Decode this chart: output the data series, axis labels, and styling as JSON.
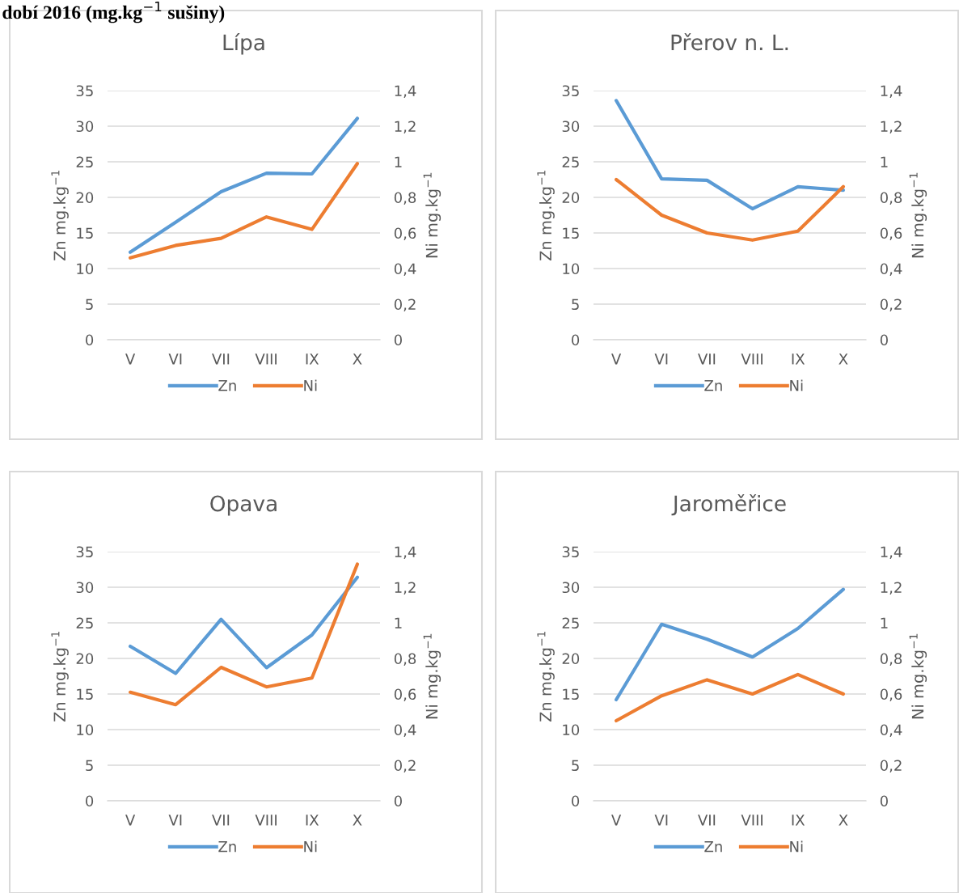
{
  "chart_data": [
    {
      "type": "line",
      "title": "Lípa",
      "categories": [
        "V",
        "VI",
        "VII",
        "VIII",
        "IX",
        "X"
      ],
      "ylabel": "Zn mg.kg$^{−1}$",
      "y2label": "Ni mg.kg$^{−1}$",
      "annotations": [
        "dobí 2016 (mg.kg$^{−1}$ sušiny)"
      ],
      "ylim": [
        0,
        35
      ],
      "yticks": [
        0,
        5,
        10,
        15,
        20,
        25,
        30,
        35
      ],
      "y2lim": [
        0,
        1.4
      ],
      "y2ticks": [
        0,
        {
          "value": 0.2,
          "label": "0,2"
        },
        {
          "value": 0.4,
          "label": "0,4"
        },
        {
          "value": 0.6,
          "label": "0,6"
        },
        {
          "value": 0.8,
          "label": "0,8"
        },
        1,
        {
          "value": 1.2,
          "label": "1,2"
        },
        {
          "value": 1.4,
          "label": "1,4"
        }
      ],
      "grid": "y",
      "legend": "bottom",
      "series": [
        {
          "name": "Zn",
          "color": "#5b9bd5",
          "values": [
            12.3,
            16.5,
            20.8,
            23.4,
            23.3,
            31.1
          ]
        },
        {
          "name": "Ni",
          "color": "#ed7d31",
          "axis": "y2",
          "values": [
            0.46,
            0.53,
            0.57,
            0.69,
            0.62,
            0.99
          ]
        }
      ]
    },
    {
      "type": "line",
      "title": "Přerov n. L.",
      "categories": [
        "V",
        "VI",
        "VII",
        "VIII",
        "IX",
        "X"
      ],
      "ylabel": "Zn mg.kg$^{−1}$",
      "y2label": "Ni mg.kg$^{−1}$",
      "ylim": [
        0,
        35
      ],
      "yticks": [
        0,
        5,
        10,
        15,
        20,
        25,
        30,
        35
      ],
      "y2lim": [
        0,
        1.4
      ],
      "y2ticks": [
        0,
        {
          "value": 0.2,
          "label": "0,2"
        },
        {
          "value": 0.4,
          "label": "0,4"
        },
        {
          "value": 0.6,
          "label": "0,6"
        },
        {
          "value": 0.8,
          "label": "0,8"
        },
        1,
        {
          "value": 1.2,
          "label": "1,2"
        },
        {
          "value": 1.4,
          "label": "1,4"
        }
      ],
      "grid": "y",
      "legend": "bottom",
      "series": [
        {
          "name": "Zn",
          "color": "#5b9bd5",
          "values": [
            33.6,
            22.6,
            22.4,
            18.4,
            21.5,
            21.0
          ]
        },
        {
          "name": "Ni",
          "color": "#ed7d31",
          "axis": "y2",
          "values": [
            0.9,
            0.7,
            0.6,
            0.56,
            0.61,
            0.86
          ]
        }
      ]
    },
    {
      "type": "line",
      "title": "Opava",
      "categories": [
        "V",
        "VI",
        "VII",
        "VIII",
        "IX",
        "X"
      ],
      "ylabel": "Zn mg.kg$^{−1}$",
      "y2label": "Ni mg.kg$^{−1}$",
      "ylim": [
        0,
        35
      ],
      "yticks": [
        0,
        5,
        10,
        15,
        20,
        25,
        30,
        35
      ],
      "y2lim": [
        0,
        1.4
      ],
      "y2ticks": [
        0,
        {
          "value": 0.2,
          "label": "0,2"
        },
        {
          "value": 0.4,
          "label": "0,4"
        },
        {
          "value": 0.6,
          "label": "0,6"
        },
        {
          "value": 0.8,
          "label": "0,8"
        },
        1,
        {
          "value": 1.2,
          "label": "1,2"
        },
        {
          "value": 1.4,
          "label": "1,4"
        }
      ],
      "grid": "y",
      "legend": "bottom",
      "series": [
        {
          "name": "Zn",
          "color": "#5b9bd5",
          "values": [
            21.7,
            17.9,
            25.5,
            18.7,
            23.3,
            31.4
          ]
        },
        {
          "name": "Ni",
          "color": "#ed7d31",
          "axis": "y2",
          "values": [
            0.61,
            0.54,
            0.75,
            0.64,
            0.69,
            1.33
          ]
        }
      ]
    },
    {
      "type": "line",
      "title": "Jaroměřice",
      "categories": [
        "V",
        "VI",
        "VII",
        "VIII",
        "IX",
        "X"
      ],
      "ylabel": "Zn mg.kg$^{−1}$",
      "y2label": "Ni mg.kg$^{−1}$",
      "ylim": [
        0,
        35
      ],
      "yticks": [
        0,
        5,
        10,
        15,
        20,
        25,
        30,
        35
      ],
      "y2lim": [
        0,
        1.4
      ],
      "y2ticks": [
        0,
        {
          "value": 0.2,
          "label": "0,2"
        },
        {
          "value": 0.4,
          "label": "0,4"
        },
        {
          "value": 0.6,
          "label": "0,6"
        },
        {
          "value": 0.8,
          "label": "0,8"
        },
        1,
        {
          "value": 1.2,
          "label": "1,2"
        },
        {
          "value": 1.4,
          "label": "1,4"
        }
      ],
      "grid": "y",
      "legend": "bottom",
      "series": [
        {
          "name": "Zn",
          "color": "#5b9bd5",
          "values": [
            14.2,
            24.8,
            22.7,
            20.2,
            24.2,
            29.7
          ]
        },
        {
          "name": "Ni",
          "color": "#ed7d31",
          "axis": "y2",
          "values": [
            0.45,
            0.59,
            0.68,
            0.6,
            0.71,
            0.6
          ]
        }
      ]
    }
  ]
}
